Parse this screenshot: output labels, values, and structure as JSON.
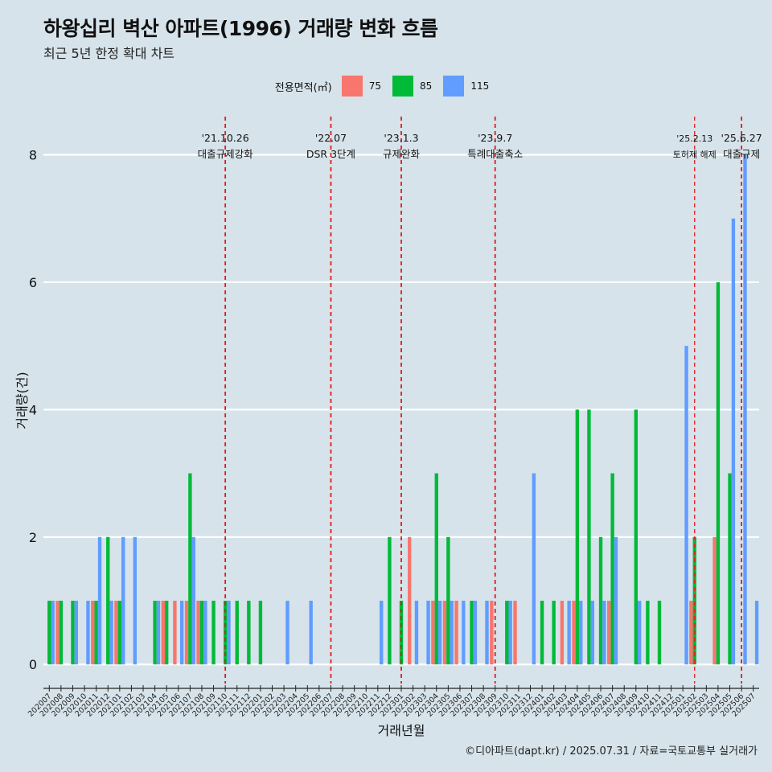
{
  "title": "하왕십리 벽산 아파트(1996) 거래량 변화 흐름",
  "subtitle": "최근 5년 한정 확대 차트",
  "legend_title": "전용면적(㎡)",
  "caption": "©디아파트(dapt.kr) / 2025.07.31 / 자료=국토교통부 실거래가",
  "chart_data": {
    "type": "bar",
    "xlabel": "거래년월",
    "ylabel": "거래량(건)",
    "ylim": [
      -0.3,
      8.6
    ],
    "yticks": [
      0,
      2,
      4,
      6,
      8
    ],
    "categories": [
      "202007",
      "202008",
      "202009",
      "202010",
      "202011",
      "202012",
      "202101",
      "202102",
      "202103",
      "202104",
      "202105",
      "202106",
      "202107",
      "202108",
      "202109",
      "202110",
      "202111",
      "202112",
      "202201",
      "202202",
      "202203",
      "202204",
      "202205",
      "202206",
      "202207",
      "202208",
      "202209",
      "202210",
      "202211",
      "202212",
      "202301",
      "202302",
      "202303",
      "202304",
      "202305",
      "202306",
      "202307",
      "202308",
      "202309",
      "202310",
      "202311",
      "202312",
      "202401",
      "202402",
      "202403",
      "202404",
      "202405",
      "202406",
      "202407",
      "202408",
      "202409",
      "202410",
      "202411",
      "202412",
      "202501",
      "202502",
      "202503",
      "202504",
      "202505",
      "202506",
      "202507"
    ],
    "series": [
      {
        "name": "75",
        "color": "#F8766D",
        "values": [
          0,
          1,
          0,
          0,
          1,
          0,
          1,
          0,
          0,
          0,
          1,
          1,
          1,
          1,
          0,
          0,
          0,
          0,
          0,
          0,
          0,
          0,
          0,
          0,
          0,
          0,
          0,
          0,
          0,
          0,
          0,
          2,
          0,
          1,
          1,
          1,
          0,
          0,
          1,
          0,
          1,
          0,
          0,
          0,
          1,
          1,
          0,
          0,
          1,
          0,
          0,
          0,
          0,
          0,
          0,
          1,
          0,
          2,
          0,
          0,
          0
        ]
      },
      {
        "name": "85",
        "color": "#00BA38",
        "values": [
          1,
          1,
          1,
          0,
          1,
          2,
          1,
          0,
          0,
          1,
          1,
          0,
          3,
          1,
          1,
          1,
          1,
          1,
          1,
          0,
          0,
          0,
          0,
          0,
          0,
          0,
          0,
          0,
          0,
          2,
          1,
          0,
          0,
          3,
          2,
          0,
          1,
          0,
          0,
          1,
          0,
          0,
          1,
          1,
          0,
          4,
          4,
          2,
          3,
          0,
          4,
          1,
          1,
          0,
          0,
          2,
          0,
          6,
          3,
          0,
          0
        ]
      },
      {
        "name": "115",
        "color": "#619CFF",
        "values": [
          1,
          0,
          1,
          1,
          2,
          1,
          2,
          2,
          0,
          1,
          0,
          1,
          2,
          1,
          0,
          1,
          0,
          0,
          0,
          0,
          1,
          0,
          1,
          0,
          0,
          0,
          0,
          0,
          1,
          0,
          0,
          1,
          1,
          1,
          1,
          1,
          1,
          1,
          0,
          1,
          0,
          3,
          0,
          0,
          1,
          1,
          1,
          1,
          2,
          0,
          1,
          0,
          0,
          0,
          5,
          0,
          0,
          0,
          7,
          8,
          1
        ]
      }
    ],
    "events": [
      {
        "date": "'21.10.26",
        "label": "대출규제강화",
        "month": "202110"
      },
      {
        "date": "'22.07",
        "label": "DSR 3단계",
        "month": "202207"
      },
      {
        "date": "'23.1.3",
        "label": "규제완화",
        "month": "202301"
      },
      {
        "date": "'23.9.7",
        "label": "특례대출축소",
        "month": "202309"
      },
      {
        "date": "'25.2.13",
        "label": "토허제 해제",
        "month": "202502"
      },
      {
        "date": "'25.6.27",
        "label": "대출규제",
        "month": "202506"
      }
    ],
    "grid": true,
    "legend_position": "top"
  }
}
